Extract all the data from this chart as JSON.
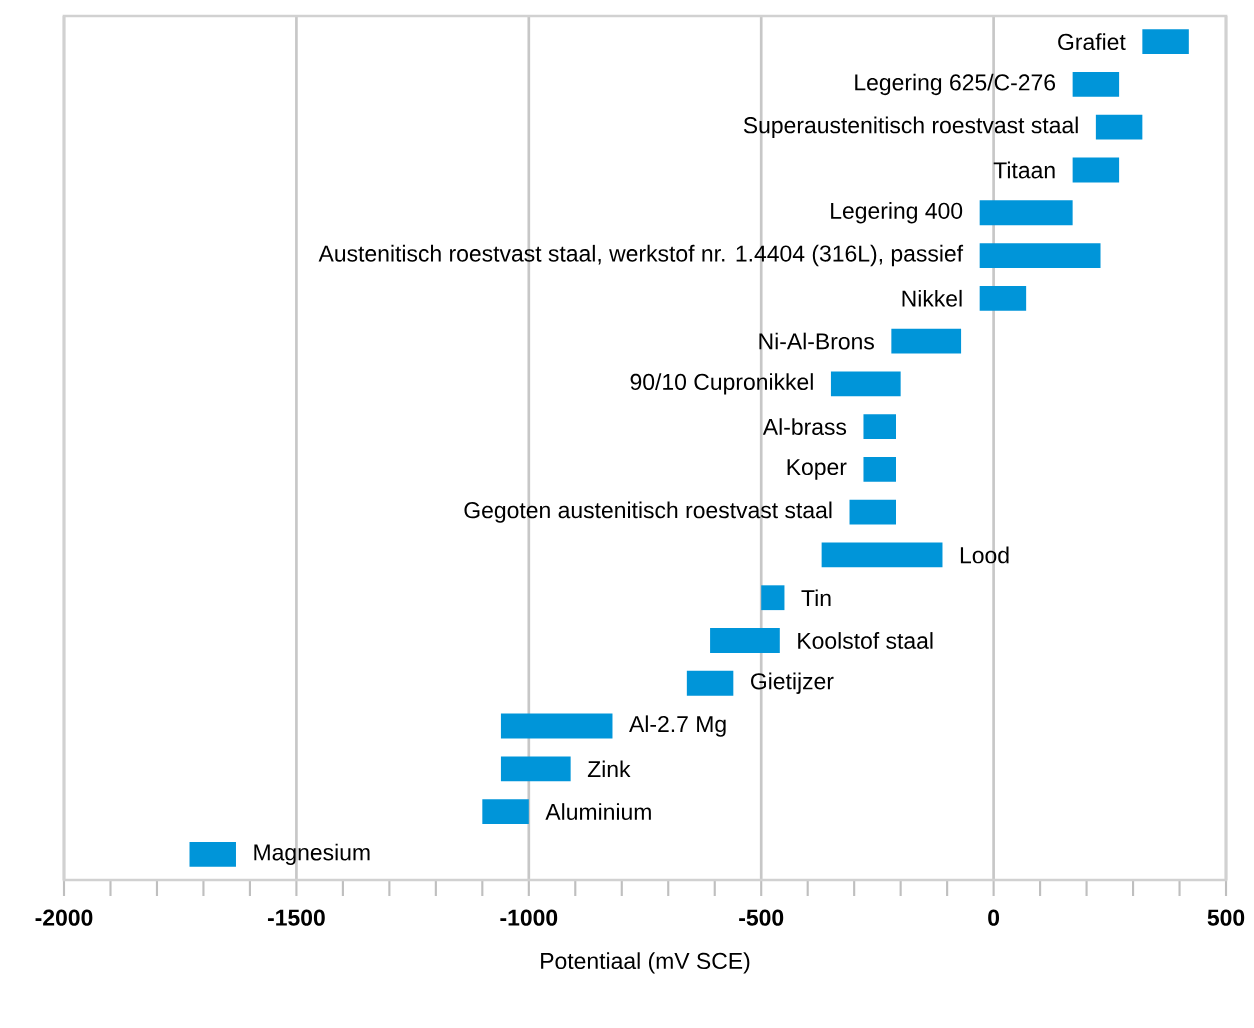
{
  "chart_data": {
    "type": "bar",
    "orientation": "horizontal",
    "xlabel": "Potentiaal (mV SCE)",
    "categories": [
      "Grafiet",
      "Legering 625/C-276",
      "Superaustenitisch roestvast staal",
      "Titaan",
      "Legering 400",
      "Austenitisch roestvast staal, werkstof nr. 1.4404 (316L), passief",
      "Nikkel",
      "Ni-Al-Brons",
      "90/10 Cupronikkel",
      "Al-brass",
      "Koper",
      "Gegoten austenitisch roestvast staal",
      "Lood",
      "Tin",
      "Koolstof staal",
      "Gietijzer",
      "Al-2.7 Mg",
      "Zink",
      "Aluminium",
      "Magnesium"
    ],
    "base": [
      320,
      170,
      220,
      170,
      -30,
      -30,
      -30,
      -220,
      -350,
      -280,
      -280,
      -310,
      -370,
      -500,
      -610,
      -660,
      -1060,
      -1060,
      -1100,
      -1730
    ],
    "values": [
      100,
      100,
      100,
      100,
      200,
      260,
      100,
      150,
      150,
      70,
      70,
      100,
      260,
      50,
      150,
      100,
      240,
      150,
      100,
      100
    ],
    "color": "#0095d9",
    "xlim": [
      -2000,
      500
    ],
    "xticks": [
      -2000,
      -1500,
      -1000,
      -500,
      0,
      500
    ],
    "grid": "x"
  }
}
